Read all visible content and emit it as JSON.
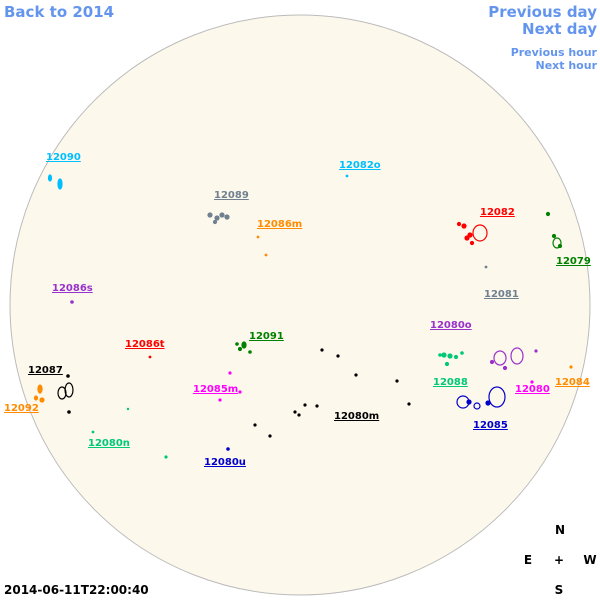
{
  "navigation": {
    "back": "Back to 2014",
    "previous_day": "Previous day",
    "next_day": "Next day",
    "previous_hour": "Previous hour",
    "next_hour": "Next hour"
  },
  "regions": [
    {
      "label": "12090",
      "color": "#00bfff"
    },
    {
      "label": "12082o",
      "color": "#00bfff"
    },
    {
      "label": "12089",
      "color": "#708090"
    },
    {
      "label": "12086m",
      "color": "#ff8c00"
    },
    {
      "label": "12082",
      "color": "#ff0000"
    },
    {
      "label": "12079",
      "color": "#008000"
    },
    {
      "label": "12081",
      "color": "#708090"
    },
    {
      "label": "12086s",
      "color": "#9932cc"
    },
    {
      "label": "12080o",
      "color": "#9932cc"
    },
    {
      "label": "12091",
      "color": "#008000"
    },
    {
      "label": "12086t",
      "color": "#ff0000"
    },
    {
      "label": "12087",
      "color": "#000000"
    },
    {
      "label": "12088",
      "color": "#00c878"
    },
    {
      "label": "12084",
      "color": "#ff8c00"
    },
    {
      "label": "12085m",
      "color": "#ff00ff"
    },
    {
      "label": "12080",
      "color": "#ff00ff"
    },
    {
      "label": "12092",
      "color": "#ff8c00"
    },
    {
      "label": "12080m",
      "color": "#000000"
    },
    {
      "label": "12085",
      "color": "#0000cd"
    },
    {
      "label": "12080n",
      "color": "#00c878"
    },
    {
      "label": "12080u",
      "color": "#0000cd"
    }
  ],
  "compass": {
    "north": "N",
    "east": "E",
    "center": "+",
    "west": "W",
    "south": "S"
  },
  "timestamp": "2014-06-11T22:00:40"
}
